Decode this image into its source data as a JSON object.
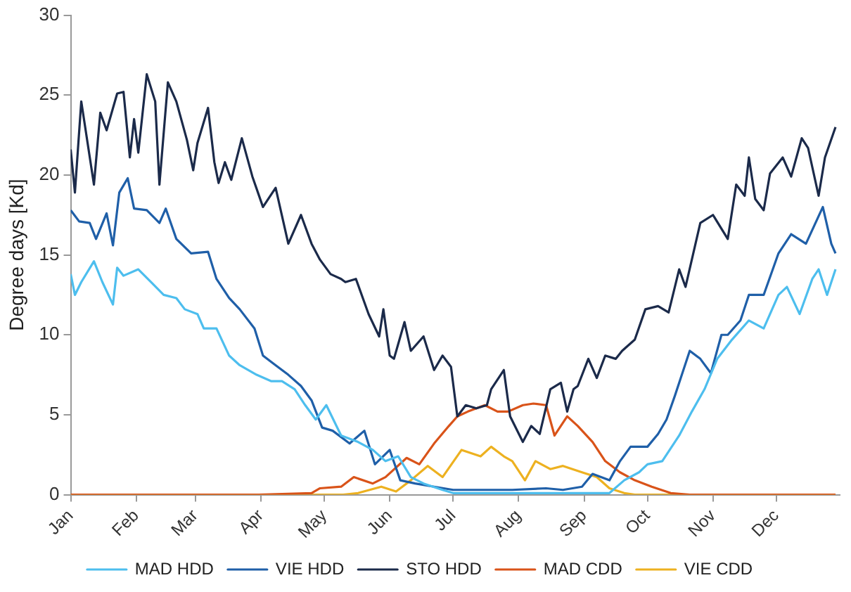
{
  "chart_data": {
    "type": "line",
    "ylabel": "Degree days [Kd]",
    "xlim": [
      "--01-01",
      "--12-31"
    ],
    "xticks": [
      {
        "value": "--01-01",
        "label": "Jan"
      },
      {
        "value": "--02-01",
        "label": "Feb"
      },
      {
        "value": "--03-01",
        "label": "Mar"
      },
      {
        "value": "--04-01",
        "label": "Apr"
      },
      {
        "value": "--05-01",
        "label": "May"
      },
      {
        "value": "--06-01",
        "label": "Jun"
      },
      {
        "value": "--07-01",
        "label": "Jul"
      },
      {
        "value": "--08-01",
        "label": "Aug"
      },
      {
        "value": "--09-01",
        "label": "Sep"
      },
      {
        "value": "--10-01",
        "label": "Oct"
      },
      {
        "value": "--11-01",
        "label": "Nov"
      },
      {
        "value": "--12-01",
        "label": "Dec"
      }
    ],
    "ylim": [
      0,
      30
    ],
    "yticks": [
      0,
      5,
      10,
      15,
      20,
      25,
      30
    ],
    "grid": false,
    "legend": "bottom",
    "marker": "none",
    "line_style": "solid",
    "series": [
      {
        "name": "MAD HDD",
        "color": "#4dbeee",
        "x": [
          "--01-01",
          "--01-03",
          "--01-06",
          "--01-12",
          "--01-16",
          "--01-21",
          "--01-23",
          "--01-26",
          "--02-02",
          "--02-08",
          "--02-14",
          "--02-20",
          "--02-24",
          "--03-02",
          "--03-05",
          "--03-11",
          "--03-17",
          "--03-22",
          "--03-30",
          "--04-06",
          "--04-11",
          "--04-17",
          "--04-22",
          "--04-27",
          "--05-02",
          "--05-09",
          "--05-17",
          "--05-24",
          "--05-30",
          "--06-05",
          "--06-11",
          "--06-17",
          "--06-26",
          "--07-01",
          "--07-19",
          "--08-28",
          "--09-13",
          "--09-20",
          "--09-27",
          "--10-01",
          "--10-08",
          "--10-16",
          "--10-22",
          "--10-28",
          "--11-03",
          "--11-10",
          "--11-18",
          "--11-25",
          "--12-02",
          "--12-06",
          "--12-12",
          "--12-18",
          "--12-21",
          "--12-25",
          "--12-29"
        ],
        "values": [
          13.8,
          12.5,
          13.3,
          14.6,
          13.3,
          11.9,
          14.2,
          13.7,
          14.1,
          13.3,
          12.5,
          12.3,
          11.6,
          11.3,
          10.4,
          10.4,
          8.7,
          8.1,
          7.5,
          7.1,
          7.1,
          6.6,
          5.6,
          4.7,
          5.6,
          3.7,
          3.3,
          2.8,
          2.1,
          2.4,
          1.1,
          0.7,
          0.3,
          0.1,
          0.1,
          0.1,
          0.1,
          0.9,
          1.4,
          1.9,
          2.1,
          3.7,
          5.2,
          6.6,
          8.5,
          9.7,
          10.9,
          10.4,
          12.5,
          13.0,
          11.3,
          13.5,
          14.1,
          12.5,
          14.1
        ]
      },
      {
        "name": "VIE HDD",
        "color": "#1f5fa8",
        "x": [
          "--01-01",
          "--01-05",
          "--01-10",
          "--01-13",
          "--01-18",
          "--01-21",
          "--01-24",
          "--01-28",
          "--01-31",
          "--02-06",
          "--02-12",
          "--02-15",
          "--02-20",
          "--02-27",
          "--03-07",
          "--03-11",
          "--03-17",
          "--03-22",
          "--03-29",
          "--04-02",
          "--04-08",
          "--04-14",
          "--04-20",
          "--04-25",
          "--04-30",
          "--05-05",
          "--05-13",
          "--05-20",
          "--05-25",
          "--06-01",
          "--06-06",
          "--06-13",
          "--06-22",
          "--07-01",
          "--07-12",
          "--07-29",
          "--08-14",
          "--08-22",
          "--08-31",
          "--09-05",
          "--09-13",
          "--09-18",
          "--09-23",
          "--10-01",
          "--10-06",
          "--10-10",
          "--10-14",
          "--10-18",
          "--10-21",
          "--10-26",
          "--10-31",
          "--11-05",
          "--11-08",
          "--11-14",
          "--11-18",
          "--11-25",
          "--12-02",
          "--12-08",
          "--12-15",
          "--12-23",
          "--12-27",
          "--12-29"
        ],
        "values": [
          17.8,
          17.1,
          17.0,
          16.0,
          17.6,
          15.6,
          18.9,
          19.8,
          17.9,
          17.8,
          17.0,
          17.9,
          16.0,
          15.1,
          15.2,
          13.5,
          12.3,
          11.6,
          10.4,
          8.7,
          8.1,
          7.5,
          6.8,
          5.9,
          4.2,
          4.0,
          3.2,
          4.0,
          1.9,
          2.8,
          0.9,
          0.7,
          0.5,
          0.3,
          0.3,
          0.3,
          0.4,
          0.3,
          0.5,
          1.3,
          0.9,
          2.1,
          3.0,
          3.0,
          3.8,
          4.7,
          6.2,
          7.8,
          9.0,
          8.5,
          7.6,
          10.0,
          10.0,
          10.9,
          12.5,
          12.5,
          15.1,
          16.3,
          15.7,
          18.0,
          15.7,
          15.1
        ]
      },
      {
        "name": "STO HDD",
        "color": "#1b2a4a",
        "x": [
          "--01-01",
          "--01-03",
          "--01-06",
          "--01-12",
          "--01-15",
          "--01-18",
          "--01-23",
          "--01-26",
          "--01-29",
          "--01-31",
          "--02-02",
          "--02-06",
          "--02-10",
          "--02-12",
          "--02-16",
          "--02-20",
          "--02-25",
          "--02-28",
          "--03-02",
          "--03-07",
          "--03-10",
          "--03-12",
          "--03-15",
          "--03-18",
          "--03-23",
          "--03-28",
          "--04-02",
          "--04-08",
          "--04-14",
          "--04-20",
          "--04-25",
          "--04-29",
          "--05-04",
          "--05-09",
          "--05-11",
          "--05-16",
          "--05-22",
          "--05-27",
          "--05-29",
          "--06-01",
          "--06-03",
          "--06-08",
          "--06-11",
          "--06-17",
          "--06-22",
          "--06-26",
          "--06-30",
          "--07-03",
          "--07-07",
          "--07-12",
          "--07-17",
          "--07-19",
          "--07-25",
          "--07-28",
          "--08-03",
          "--08-07",
          "--08-11",
          "--08-16",
          "--08-21",
          "--08-24",
          "--08-27",
          "--08-29",
          "--09-03",
          "--09-07",
          "--09-11",
          "--09-16",
          "--09-19",
          "--09-25",
          "--09-30",
          "--10-06",
          "--10-11",
          "--10-16",
          "--10-19",
          "--10-26",
          "--11-01",
          "--11-08",
          "--11-12",
          "--11-16",
          "--11-18",
          "--11-21",
          "--11-25",
          "--11-28",
          "--12-04",
          "--12-08",
          "--12-13",
          "--12-16",
          "--12-21",
          "--12-24",
          "--12-29"
        ],
        "values": [
          21.6,
          18.9,
          24.6,
          19.4,
          23.9,
          22.8,
          25.1,
          25.2,
          21.1,
          23.5,
          21.4,
          26.3,
          24.6,
          19.4,
          25.8,
          24.6,
          22.2,
          20.3,
          22.0,
          24.2,
          20.8,
          19.5,
          20.8,
          19.7,
          22.3,
          19.9,
          18.0,
          19.2,
          15.7,
          17.5,
          15.7,
          14.7,
          13.8,
          13.5,
          13.3,
          13.5,
          11.3,
          9.9,
          11.6,
          8.7,
          8.5,
          10.8,
          9.0,
          9.9,
          7.8,
          8.7,
          8.0,
          4.9,
          5.6,
          5.4,
          5.6,
          6.6,
          7.8,
          4.9,
          3.3,
          4.3,
          3.8,
          6.6,
          7.0,
          5.2,
          6.6,
          6.8,
          8.5,
          7.3,
          8.7,
          8.5,
          9.0,
          9.7,
          11.6,
          11.8,
          11.4,
          14.1,
          13.0,
          17.0,
          17.5,
          16.0,
          19.4,
          18.7,
          21.1,
          18.5,
          17.8,
          20.1,
          21.1,
          19.9,
          22.3,
          21.7,
          18.7,
          21.1,
          23.0
        ]
      },
      {
        "name": "MAD CDD",
        "color": "#d95319",
        "x": [
          "--01-01",
          "--03-31",
          "--04-25",
          "--04-29",
          "--05-09",
          "--05-15",
          "--05-24",
          "--05-30",
          "--06-09",
          "--06-15",
          "--06-22",
          "--06-29",
          "--07-03",
          "--07-08",
          "--07-16",
          "--07-22",
          "--07-27",
          "--08-03",
          "--08-08",
          "--08-14",
          "--08-18",
          "--08-24",
          "--08-29",
          "--09-05",
          "--09-11",
          "--09-18",
          "--09-25",
          "--10-03",
          "--10-12",
          "--10-21",
          "--12-29"
        ],
        "values": [
          0,
          0,
          0.1,
          0.4,
          0.5,
          1.1,
          0.7,
          1.1,
          2.3,
          1.9,
          3.2,
          4.3,
          4.9,
          5.2,
          5.6,
          5.2,
          5.2,
          5.6,
          5.7,
          5.6,
          3.7,
          4.9,
          4.3,
          3.3,
          2.1,
          1.4,
          0.9,
          0.5,
          0.1,
          0,
          0
        ]
      },
      {
        "name": "VIE CDD",
        "color": "#edb120",
        "x": [
          "--01-01",
          "--05-10",
          "--05-17",
          "--05-28",
          "--06-04",
          "--06-11",
          "--06-19",
          "--06-26",
          "--07-05",
          "--07-14",
          "--07-19",
          "--07-25",
          "--07-29",
          "--08-04",
          "--08-09",
          "--08-16",
          "--08-22",
          "--08-31",
          "--09-07",
          "--09-13",
          "--09-20",
          "--09-25",
          "--12-29"
        ],
        "values": [
          0,
          0,
          0.1,
          0.5,
          0.2,
          0.9,
          1.8,
          1.1,
          2.8,
          2.4,
          3.0,
          2.4,
          2.1,
          0.9,
          2.1,
          1.6,
          1.8,
          1.4,
          1.1,
          0.4,
          0.1,
          0,
          0
        ]
      }
    ]
  }
}
